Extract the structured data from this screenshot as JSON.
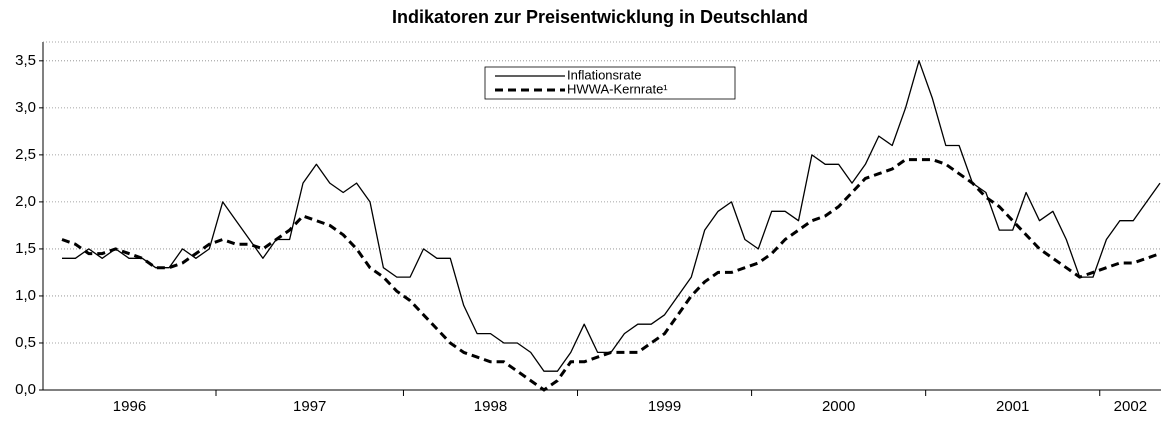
{
  "chart_data": {
    "type": "line",
    "title": "Indikatoren zur Preisentwicklung in Deutschland",
    "categories": [
      "1996",
      null,
      null,
      null,
      null,
      null,
      null,
      null,
      null,
      null,
      null,
      null,
      "1997",
      null,
      null,
      null,
      null,
      null,
      null,
      null,
      null,
      null,
      null,
      null,
      null,
      null,
      "1998",
      null,
      null,
      null,
      null,
      null,
      null,
      null,
      null,
      null,
      null,
      null,
      null,
      "1999",
      null,
      null,
      null,
      null,
      null,
      null,
      null,
      null,
      null,
      null,
      null,
      null,
      "2000",
      null,
      null,
      null,
      null,
      null,
      null,
      null,
      null,
      null,
      null,
      null,
      null,
      "2001",
      null,
      null,
      null,
      null,
      null,
      null,
      null,
      null,
      null,
      null,
      null,
      null,
      "2002",
      null,
      null,
      null,
      null
    ],
    "series": [
      {
        "name": "Inflationsrate",
        "color": "#000000",
        "line_style": "solid",
        "values": [
          1.4,
          1.4,
          1.5,
          1.4,
          1.5,
          1.4,
          1.4,
          1.3,
          1.3,
          1.5,
          1.4,
          1.5,
          2.0,
          1.8,
          1.6,
          1.4,
          1.6,
          1.6,
          2.2,
          2.4,
          2.2,
          2.1,
          2.2,
          2.0,
          1.3,
          1.2,
          1.2,
          1.5,
          1.4,
          1.4,
          0.9,
          0.6,
          0.6,
          0.5,
          0.5,
          0.4,
          0.2,
          0.2,
          0.4,
          0.7,
          0.4,
          0.4,
          0.6,
          0.7,
          0.7,
          0.8,
          1.0,
          1.2,
          1.7,
          1.9,
          2.0,
          1.6,
          1.5,
          1.9,
          1.9,
          1.8,
          2.5,
          2.4,
          2.4,
          2.2,
          2.4,
          2.7,
          2.6,
          3.0,
          3.5,
          3.1,
          2.6,
          2.6,
          2.2,
          2.1,
          1.7,
          1.7,
          2.1,
          1.8,
          1.9,
          1.6,
          1.2,
          1.2,
          1.6,
          1.8,
          1.8,
          2.0,
          2.2
        ]
      },
      {
        "name": "HWWA-Kernrate¹",
        "color": "#000000",
        "line_style": "dashed",
        "values": [
          1.6,
          1.55,
          1.45,
          1.45,
          1.5,
          1.45,
          1.4,
          1.3,
          1.3,
          1.35,
          1.45,
          1.55,
          1.6,
          1.55,
          1.55,
          1.5,
          1.6,
          1.7,
          1.85,
          1.8,
          1.75,
          1.65,
          1.5,
          1.3,
          1.2,
          1.05,
          0.95,
          0.8,
          0.65,
          0.5,
          0.4,
          0.35,
          0.3,
          0.3,
          0.2,
          0.1,
          0.0,
          0.1,
          0.3,
          0.3,
          0.35,
          0.4,
          0.4,
          0.4,
          0.5,
          0.6,
          0.8,
          1.0,
          1.15,
          1.25,
          1.25,
          1.3,
          1.35,
          1.45,
          1.6,
          1.7,
          1.8,
          1.85,
          1.95,
          2.1,
          2.25,
          2.3,
          2.35,
          2.45,
          2.45,
          2.45,
          2.4,
          2.3,
          2.2,
          2.05,
          1.95,
          1.8,
          1.65,
          1.5,
          1.4,
          1.3,
          1.2,
          1.25,
          1.3,
          1.35,
          1.35,
          1.4,
          1.45
        ]
      }
    ],
    "ylim": [
      0,
      3.7
    ],
    "yticks": [
      {
        "value": 0,
        "label": "0,0"
      },
      {
        "value": 0.5,
        "label": "0,5"
      },
      {
        "value": 1,
        "label": "1,0"
      },
      {
        "value": 1.5,
        "label": "1,5"
      },
      {
        "value": 2,
        "label": "2,0"
      },
      {
        "value": 2.5,
        "label": "2,5"
      },
      {
        "value": 3,
        "label": "3,0"
      },
      {
        "value": 3.5,
        "label": "3,5"
      }
    ],
    "grid": true
  }
}
